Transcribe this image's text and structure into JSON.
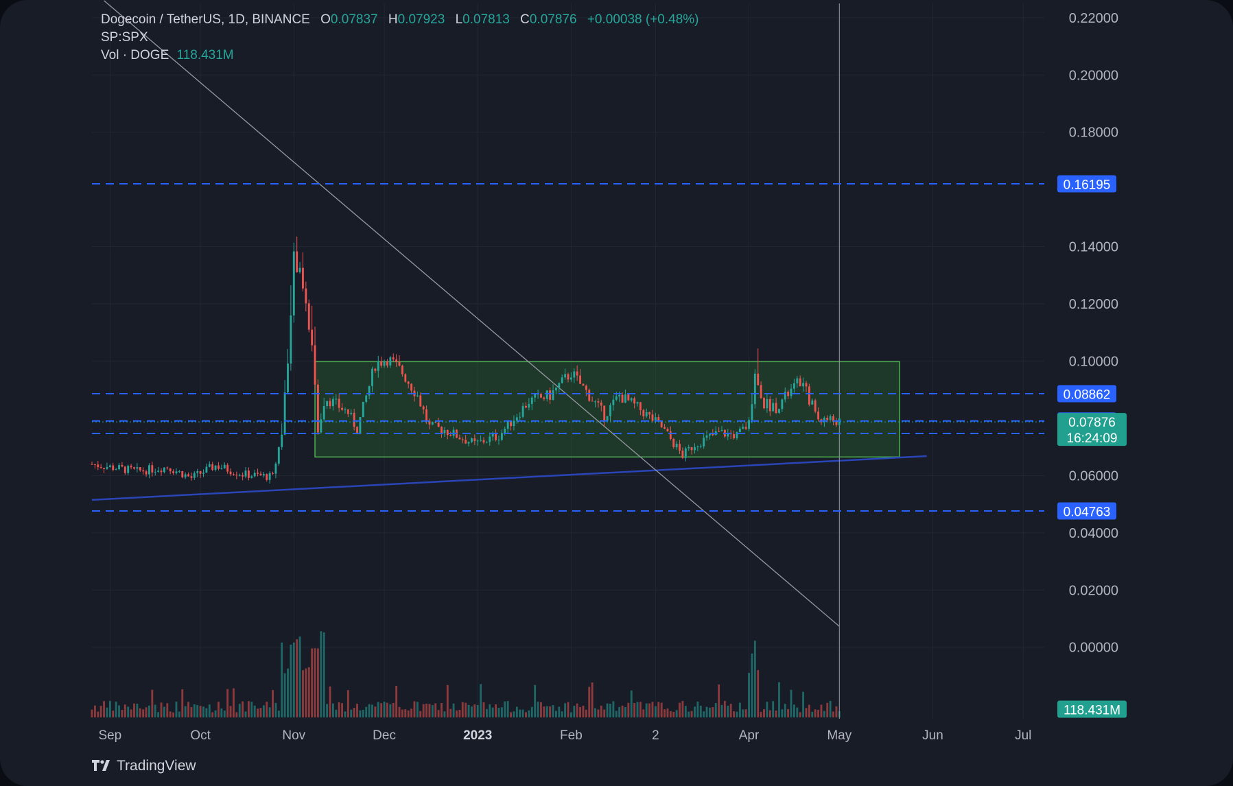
{
  "legend": {
    "title": "Dogecoin / TetherUS, 1D, BINANCE",
    "open_label": "O",
    "open": "0.07837",
    "high_label": "H",
    "high": "0.07923",
    "low_label": "L",
    "low": "0.07813",
    "close_label": "C",
    "close": "0.07876",
    "change": "+0.00038 (+0.48%)",
    "compare": "SP:SPX",
    "volume_label": "Vol · DOGE",
    "volume": "118.431M"
  },
  "brand": {
    "name": "TradingView"
  },
  "colors": {
    "background": "#181c27",
    "grid": "#232734",
    "up": "#26a69a",
    "down": "#ef5350",
    "level_line": "#2962ff",
    "trend_line": "#1e3a8a",
    "box_fill": "#2e7d32",
    "box_border": "#4caf50",
    "text": "#b2b5be"
  },
  "chart_data": {
    "type": "candlestick",
    "symbol": "DOGEUSDT",
    "ylim": [
      -0.025,
      0.225
    ],
    "y_ticks": [
      "0.22000",
      "0.20000",
      "0.18000",
      "0.14000",
      "0.12000",
      "0.10000",
      "0.06000",
      "0.04000",
      "0.02000",
      "0.00000"
    ],
    "x_ticks": [
      {
        "label": "Sep",
        "date": "2022-09-01"
      },
      {
        "label": "Oct",
        "date": "2022-10-01"
      },
      {
        "label": "Nov",
        "date": "2022-11-01"
      },
      {
        "label": "Dec",
        "date": "2022-12-01"
      },
      {
        "label": "2023",
        "date": "2023-01-01",
        "bold": true
      },
      {
        "label": "Feb",
        "date": "2023-02-01"
      },
      {
        "label": "2",
        "date": "2023-03-01"
      },
      {
        "label": "Apr",
        "date": "2023-04-01"
      },
      {
        "label": "May",
        "date": "2023-05-01"
      },
      {
        "label": "Jun",
        "date": "2023-06-01"
      },
      {
        "label": "Jul",
        "date": "2023-07-01"
      }
    ],
    "x_range": [
      "2022-08-26",
      "2023-07-08"
    ],
    "price_levels": [
      {
        "value": 0.16195,
        "label": "0.16195"
      },
      {
        "value": 0.08862,
        "label": "0.08862"
      },
      {
        "value": 0.07908,
        "label": "0.07908"
      },
      {
        "value": 0.07471,
        "label": "0.07471"
      },
      {
        "value": 0.04763,
        "label": "0.04763"
      }
    ],
    "current_price": {
      "value": 0.07876,
      "label": "0.07876",
      "countdown": "16:24:09"
    },
    "current_volume": {
      "label": "118.431M"
    },
    "range_box": {
      "x_start": "2022-11-08",
      "x_end": "2023-05-21",
      "y_low": 0.0665,
      "y_high": 0.0998
    },
    "support_line": {
      "from": {
        "date": "2022-08-26",
        "value": 0.0515
      },
      "to": {
        "date": "2023-05-30",
        "value": 0.0668
      }
    },
    "diagonal_line": {
      "from": {
        "date": "2022-08-30",
        "value": 0.226
      },
      "to": {
        "date": "2023-05-01",
        "value": 0.0073
      }
    },
    "crosshair_date": "2023-05-01",
    "anchors": [
      [
        "2022-08-26",
        0.064
      ],
      [
        "2022-09-10",
        0.0615
      ],
      [
        "2022-09-20",
        0.063
      ],
      [
        "2022-09-28",
        0.0592
      ],
      [
        "2022-10-06",
        0.0635
      ],
      [
        "2022-10-15",
        0.0605
      ],
      [
        "2022-10-25",
        0.0595
      ],
      [
        "2022-10-28",
        0.075
      ],
      [
        "2022-10-31",
        0.115
      ],
      [
        "2022-11-01",
        0.135
      ],
      [
        "2022-11-04",
        0.127
      ],
      [
        "2022-11-07",
        0.106
      ],
      [
        "2022-11-09",
        0.076
      ],
      [
        "2022-11-12",
        0.087
      ],
      [
        "2022-11-19",
        0.082
      ],
      [
        "2022-11-22",
        0.076
      ],
      [
        "2022-11-28",
        0.099
      ],
      [
        "2022-12-02",
        0.101
      ],
      [
        "2022-12-07",
        0.096
      ],
      [
        "2022-12-12",
        0.088
      ],
      [
        "2022-12-16",
        0.077
      ],
      [
        "2022-12-21",
        0.076
      ],
      [
        "2022-12-31",
        0.071
      ],
      [
        "2023-01-08",
        0.074
      ],
      [
        "2023-01-13",
        0.08
      ],
      [
        "2023-01-18",
        0.086
      ],
      [
        "2023-01-25",
        0.088
      ],
      [
        "2023-02-01",
        0.096
      ],
      [
        "2023-02-07",
        0.088
      ],
      [
        "2023-02-12",
        0.081
      ],
      [
        "2023-02-17",
        0.088
      ],
      [
        "2023-02-24",
        0.083
      ],
      [
        "2023-03-03",
        0.077
      ],
      [
        "2023-03-10",
        0.067
      ],
      [
        "2023-03-14",
        0.071
      ],
      [
        "2023-03-22",
        0.075
      ],
      [
        "2023-03-28",
        0.074
      ],
      [
        "2023-04-01",
        0.078
      ],
      [
        "2023-04-03",
        0.096
      ],
      [
        "2023-04-06",
        0.085
      ],
      [
        "2023-04-10",
        0.084
      ],
      [
        "2023-04-18",
        0.093
      ],
      [
        "2023-04-21",
        0.087
      ],
      [
        "2023-04-24",
        0.08
      ],
      [
        "2023-04-28",
        0.0795
      ],
      [
        "2023-05-01",
        0.0788
      ]
    ]
  }
}
